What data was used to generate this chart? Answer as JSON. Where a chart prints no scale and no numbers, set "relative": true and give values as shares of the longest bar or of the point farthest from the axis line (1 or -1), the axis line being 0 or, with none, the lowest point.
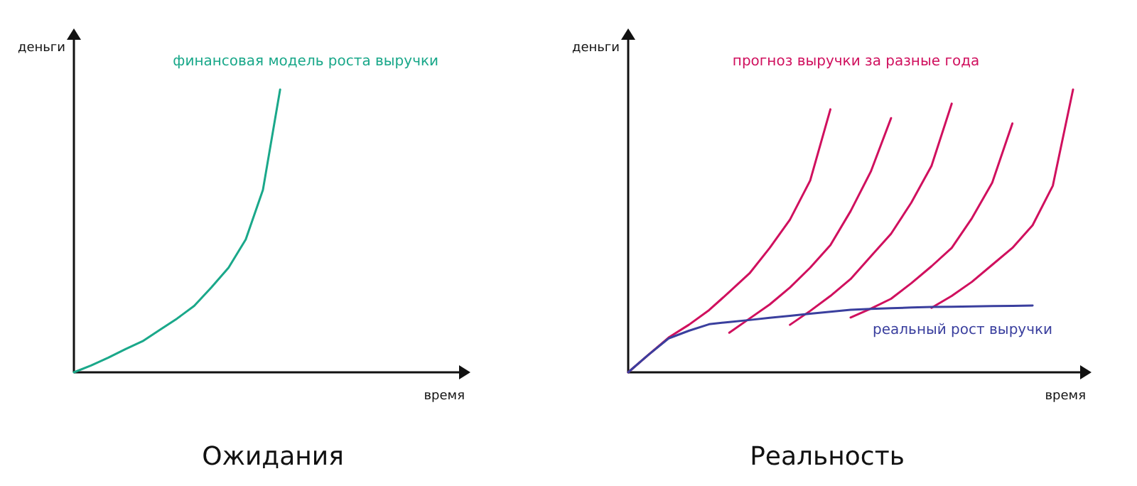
{
  "chart_data": [
    {
      "type": "line",
      "title": "Ожидания",
      "xlabel": "время",
      "ylabel": "деньги",
      "relative": true,
      "categories": [
        null,
        null,
        null,
        null,
        null,
        null,
        null,
        null,
        null,
        null,
        null,
        null,
        null,
        null,
        null,
        null,
        null,
        null,
        null,
        null,
        null,
        null,
        null
      ],
      "series": [
        {
          "name": "финансовая модель роста выручки",
          "color": "#1aa88a",
          "values": [
            0,
            0.024,
            0.052,
            0.082,
            0.11,
            0.15,
            0.19,
            0.235,
            0.3,
            0.37,
            0.47,
            0.645,
            1,
            null,
            null,
            null,
            null,
            null,
            null,
            null,
            null,
            null,
            null
          ]
        }
      ]
    },
    {
      "type": "line",
      "title": "Реальность",
      "xlabel": "время",
      "ylabel": "деньги",
      "relative": true,
      "categories": [
        null,
        null,
        null,
        null,
        null,
        null,
        null,
        null,
        null,
        null,
        null,
        null,
        null,
        null,
        null,
        null,
        null,
        null,
        null,
        null,
        null,
        null,
        null
      ],
      "series": [
        {
          "name": "прогноз выручки за разные года",
          "color": "#d0105e",
          "values": [
            0,
            0.062,
            0.123,
            0.168,
            0.22,
            0.284,
            0.35,
            0.44,
            0.54,
            0.678,
            0.93,
            null,
            null,
            null,
            null,
            null,
            null,
            null,
            null,
            null,
            null,
            null,
            null
          ]
        },
        {
          "color": "#d0105e",
          "values": [
            null,
            null,
            null,
            null,
            null,
            0.14,
            0.19,
            0.24,
            0.3,
            0.37,
            0.45,
            0.57,
            0.71,
            0.899,
            null,
            null,
            null,
            null,
            null,
            null,
            null,
            null,
            null
          ]
        },
        {
          "color": "#d0105e",
          "values": [
            null,
            null,
            null,
            null,
            null,
            null,
            null,
            null,
            0.168,
            0.217,
            0.27,
            0.33,
            0.41,
            0.49,
            0.6,
            0.73,
            0.95,
            null,
            null,
            null,
            null,
            null,
            null
          ]
        },
        {
          "color": "#d0105e",
          "values": [
            null,
            null,
            null,
            null,
            null,
            null,
            null,
            null,
            null,
            null,
            null,
            0.194,
            0.225,
            0.26,
            0.315,
            0.375,
            0.44,
            0.545,
            0.67,
            0.88,
            null,
            null,
            null
          ]
        },
        {
          "color": "#d0105e",
          "values": [
            null,
            null,
            null,
            null,
            null,
            null,
            null,
            null,
            null,
            null,
            null,
            null,
            null,
            null,
            null,
            0.228,
            0.27,
            0.32,
            0.38,
            0.44,
            0.52,
            0.66,
            1
          ]
        },
        {
          "name": "реальный рост выручки",
          "color": "#3a3f9e",
          "values": [
            0,
            0.062,
            0.12,
            0.147,
            0.17,
            0.178,
            0.185,
            0.193,
            0.2,
            0.207,
            0.214,
            0.221,
            0.224,
            0.227,
            0.229,
            0.231,
            0.232,
            0.233,
            0.234,
            0.235,
            0.236,
            null,
            null
          ]
        }
      ]
    }
  ]
}
